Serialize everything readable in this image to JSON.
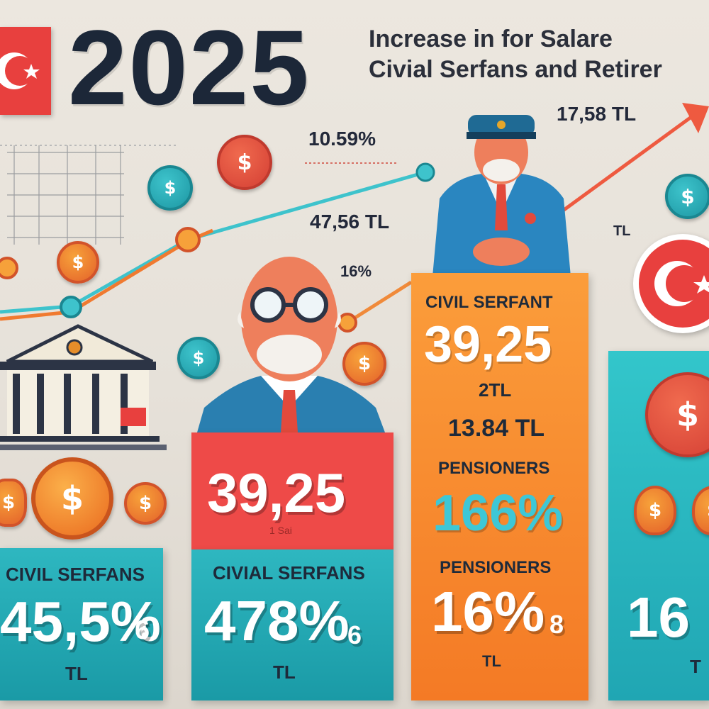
{
  "header": {
    "year": "2025",
    "headline_line1": "Increase in for Salare",
    "headline_line2": "Civial Serfans and Retirer"
  },
  "callouts": {
    "top_right_value": "17,58 TL",
    "pct_top": "10.59%",
    "mid_value": "47,56 TL",
    "small_pct": "16%"
  },
  "panels": {
    "left": {
      "label": "CIVIL SERFANS",
      "value": "45,5%",
      "suffix": "6",
      "unit": "TL"
    },
    "center_red": {
      "value": "39,25",
      "sub": "1 Sai"
    },
    "center_teal": {
      "label": "CIVIAL SERFANS",
      "value": "478%",
      "suffix": "6",
      "unit": "TL"
    },
    "orange": {
      "label": "CIVIL SERFANT",
      "value": "39,25",
      "sub": "2TL",
      "amount": "13.84 TL",
      "label2": "PENSIONERS",
      "pct": "166%",
      "label3": "PENSIONERS",
      "pct2": "16%",
      "suffix": "8",
      "unit": "TL"
    },
    "right": {
      "value": "16",
      "unit": "T"
    }
  },
  "icons": {
    "coin_symbol": "$",
    "small_tl": "TL"
  },
  "colors": {
    "flag_red": "#e8403e",
    "teal": "#1a9aa6",
    "orange": "#f47a25",
    "red_panel": "#ee4a48",
    "navy_text": "#1c2738"
  }
}
